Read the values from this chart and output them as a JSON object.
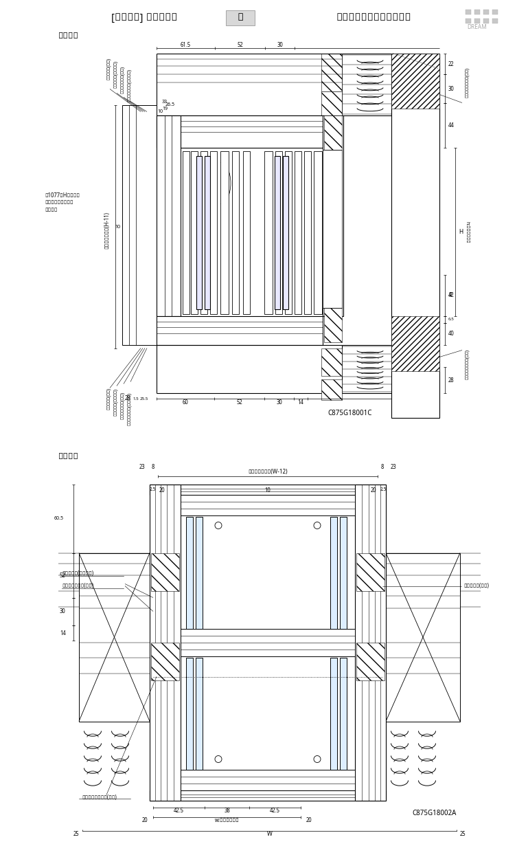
{
  "bg_color": "#ffffff",
  "title_parts": [
    "[半外付型] アングル無",
    "窓",
    "ヒシクロス格子／井桁格子"
  ],
  "section1_label": "縦断面図",
  "section2_label": "横断面図",
  "code1": "C875G18001C",
  "code2": "C875G18002A",
  "note_v": "※1077≦Hのときは\n　網戸に中桟が付き\n　ます。",
  "label_sealing": "シーリング(別途)",
  "label_wptape": "防水テープ(別売部品)",
  "label_msheet": "透湿防水シート(別途)",
  "label_senkoku": "先塞防水シート(別売部品)",
  "label_vapor": "防湿気密フィルム(別途)",
  "label_menoshi_v": "面格子出来寸法(H-11)",
  "label_h_ref": "h:内法基準寸法",
  "label_menoshi_h": "面格子出来寸法(W-12)",
  "label_wptape2": "防水テープ(別売部品)",
  "label_msheet2": "透湿防水シート(別途)",
  "label_sealing2": "シーリング(別途)",
  "label_vapor2": "防湿気密フィルム(別途)",
  "label_w_ref": "w:内法基準寸法",
  "dim_top_v": [
    "61.5",
    "52",
    "30"
  ],
  "dim_bot_v": [
    "60",
    "52",
    "30",
    "14"
  ],
  "dim_right_v": [
    "22",
    "30",
    "44",
    "H",
    "42",
    "P",
    "6.5",
    "40",
    "28"
  ],
  "dim_left_v": [
    "33",
    "26.5",
    "19",
    "10",
    "25.5",
    "1.5",
    "28"
  ],
  "dim_top_h1": [
    "23",
    "8",
    "8",
    "23"
  ],
  "dim_top_h2": [
    "2.5",
    "20",
    "10",
    "20",
    "2.5"
  ],
  "dim_left_h": [
    "60.5",
    "52",
    "30",
    "14"
  ],
  "dim_bot_h1": [
    "42.5",
    "38",
    "42.5"
  ],
  "dim_bot_h2": [
    "20",
    "20"
  ],
  "dim_bot_h3": [
    "25",
    "25"
  ]
}
